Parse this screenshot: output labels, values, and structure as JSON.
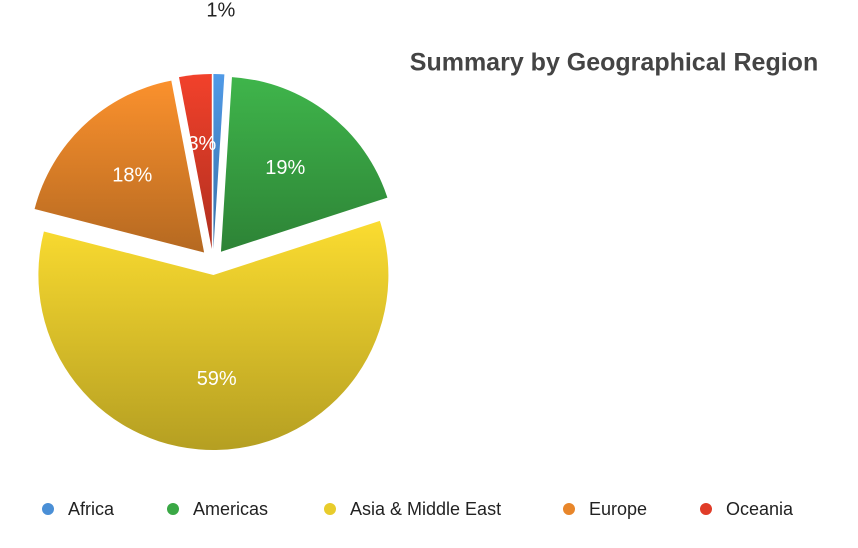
{
  "chart_data": {
    "type": "pie",
    "title": "Summary by Geographical Region",
    "categories": [
      "Africa",
      "Americas",
      "Asia & Middle East",
      "Europe",
      "Oceania"
    ],
    "values": [
      1,
      19,
      59,
      18,
      3
    ],
    "value_labels": [
      "1%",
      "19%",
      "59%",
      "18%",
      "3%"
    ],
    "colors": [
      "#4a8fd6",
      "#3aa845",
      "#e8cc2c",
      "#e8862a",
      "#e03c28"
    ],
    "legend": "bottom"
  }
}
